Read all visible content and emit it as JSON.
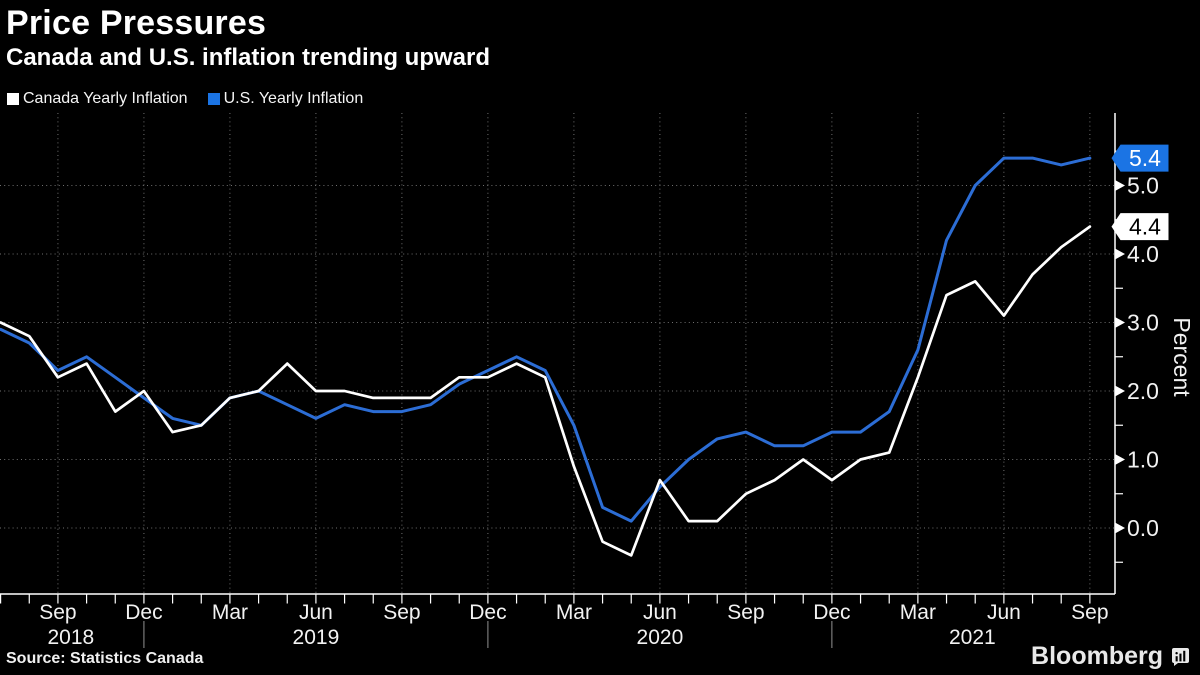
{
  "header": {
    "title": "Price Pressures",
    "subtitle": "Canada and U.S. inflation trending upward"
  },
  "legend": [
    {
      "label": "Canada Yearly Inflation",
      "color": "#ffffff"
    },
    {
      "label": "U.S. Yearly Inflation",
      "color": "#1b74e4"
    }
  ],
  "chart_data": {
    "type": "line",
    "title": "Price Pressures",
    "subtitle": "Canada and U.S. inflation trending upward",
    "ylabel": "Percent",
    "grid": {
      "horizontal": true,
      "vertical": true,
      "style": "dotted",
      "color": "#6f6f6f"
    },
    "legend_position": "top-left",
    "x": [
      "Jul 2018",
      "Aug 2018",
      "Sep 2018",
      "Oct 2018",
      "Nov 2018",
      "Dec 2018",
      "Jan 2019",
      "Feb 2019",
      "Mar 2019",
      "Apr 2019",
      "May 2019",
      "Jun 2019",
      "Jul 2019",
      "Aug 2019",
      "Sep 2019",
      "Oct 2019",
      "Nov 2019",
      "Dec 2019",
      "Jan 2020",
      "Feb 2020",
      "Mar 2020",
      "Apr 2020",
      "May 2020",
      "Jun 2020",
      "Jul 2020",
      "Aug 2020",
      "Sep 2020",
      "Oct 2020",
      "Nov 2020",
      "Dec 2020",
      "Jan 2021",
      "Feb 2021",
      "Mar 2021",
      "Apr 2021",
      "May 2021",
      "Jun 2021",
      "Jul 2021",
      "Aug 2021",
      "Sep 2021"
    ],
    "series": [
      {
        "name": "Canada Yearly Inflation",
        "color": "#ffffff",
        "width": 2.7,
        "values": [
          3.0,
          2.8,
          2.2,
          2.4,
          1.7,
          2.0,
          1.4,
          1.5,
          1.9,
          2.0,
          2.4,
          2.0,
          2.0,
          1.9,
          1.9,
          1.9,
          2.2,
          2.2,
          2.4,
          2.2,
          0.9,
          -0.2,
          -0.4,
          0.7,
          0.1,
          0.1,
          0.5,
          0.7,
          1.0,
          0.7,
          1.0,
          1.1,
          2.2,
          3.4,
          3.6,
          3.1,
          3.7,
          4.1,
          4.4
        ]
      },
      {
        "name": "U.S. Yearly Inflation",
        "color": "#2c6dd5",
        "width": 3,
        "values": [
          2.9,
          2.7,
          2.3,
          2.5,
          2.2,
          1.9,
          1.6,
          1.5,
          1.9,
          2.0,
          1.8,
          1.6,
          1.8,
          1.7,
          1.7,
          1.8,
          2.1,
          2.3,
          2.5,
          2.3,
          1.5,
          0.3,
          0.1,
          0.6,
          1.0,
          1.3,
          1.4,
          1.2,
          1.2,
          1.4,
          1.4,
          1.7,
          2.6,
          4.2,
          5.0,
          5.4,
          5.4,
          5.3,
          5.4
        ]
      }
    ],
    "x_axis": {
      "quarter_tick_indices": [
        2,
        5,
        8,
        11,
        14,
        17,
        20,
        23,
        26,
        29,
        32,
        35,
        38
      ],
      "quarter_tick_labels": [
        "Sep",
        "Dec",
        "Mar",
        "Jun",
        "Sep",
        "Dec",
        "Mar",
        "Jun",
        "Sep",
        "Dec",
        "Mar",
        "Jun",
        "Sep"
      ],
      "year_labels": [
        {
          "label": "2018",
          "month_index": 2.45
        },
        {
          "label": "2019",
          "month_index": 11.0
        },
        {
          "label": "2020",
          "month_index": 23.0
        },
        {
          "label": "2021",
          "month_index": 33.9
        }
      ],
      "year_divider_indices": [
        5,
        17,
        29
      ]
    },
    "y_axis": {
      "side": "right",
      "major_ticks": [
        {
          "value": 0,
          "label": "0.0"
        },
        {
          "value": 1,
          "label": "1.0"
        },
        {
          "value": 2,
          "label": "2.0"
        },
        {
          "value": 3,
          "label": "3.0"
        },
        {
          "value": 4,
          "label": "4.0"
        },
        {
          "value": 5,
          "label": "5.0"
        }
      ],
      "minor_tick_values": [
        -0.5,
        0.5,
        1.5,
        2.5,
        3.5,
        4.5,
        5.5
      ],
      "range_shown": [
        -1.0,
        6.1
      ]
    },
    "end_labels": [
      {
        "series": "U.S. Yearly Inflation",
        "text": "5.4",
        "value": 5.4,
        "bg": "#1b74e4",
        "fg": "#ffffff"
      },
      {
        "series": "Canada Yearly Inflation",
        "text": "4.4",
        "value": 4.4,
        "bg": "#ffffff",
        "fg": "#000000"
      }
    ]
  },
  "footer": {
    "source": "Source: Statistics Canada",
    "brand": "Bloomberg"
  }
}
